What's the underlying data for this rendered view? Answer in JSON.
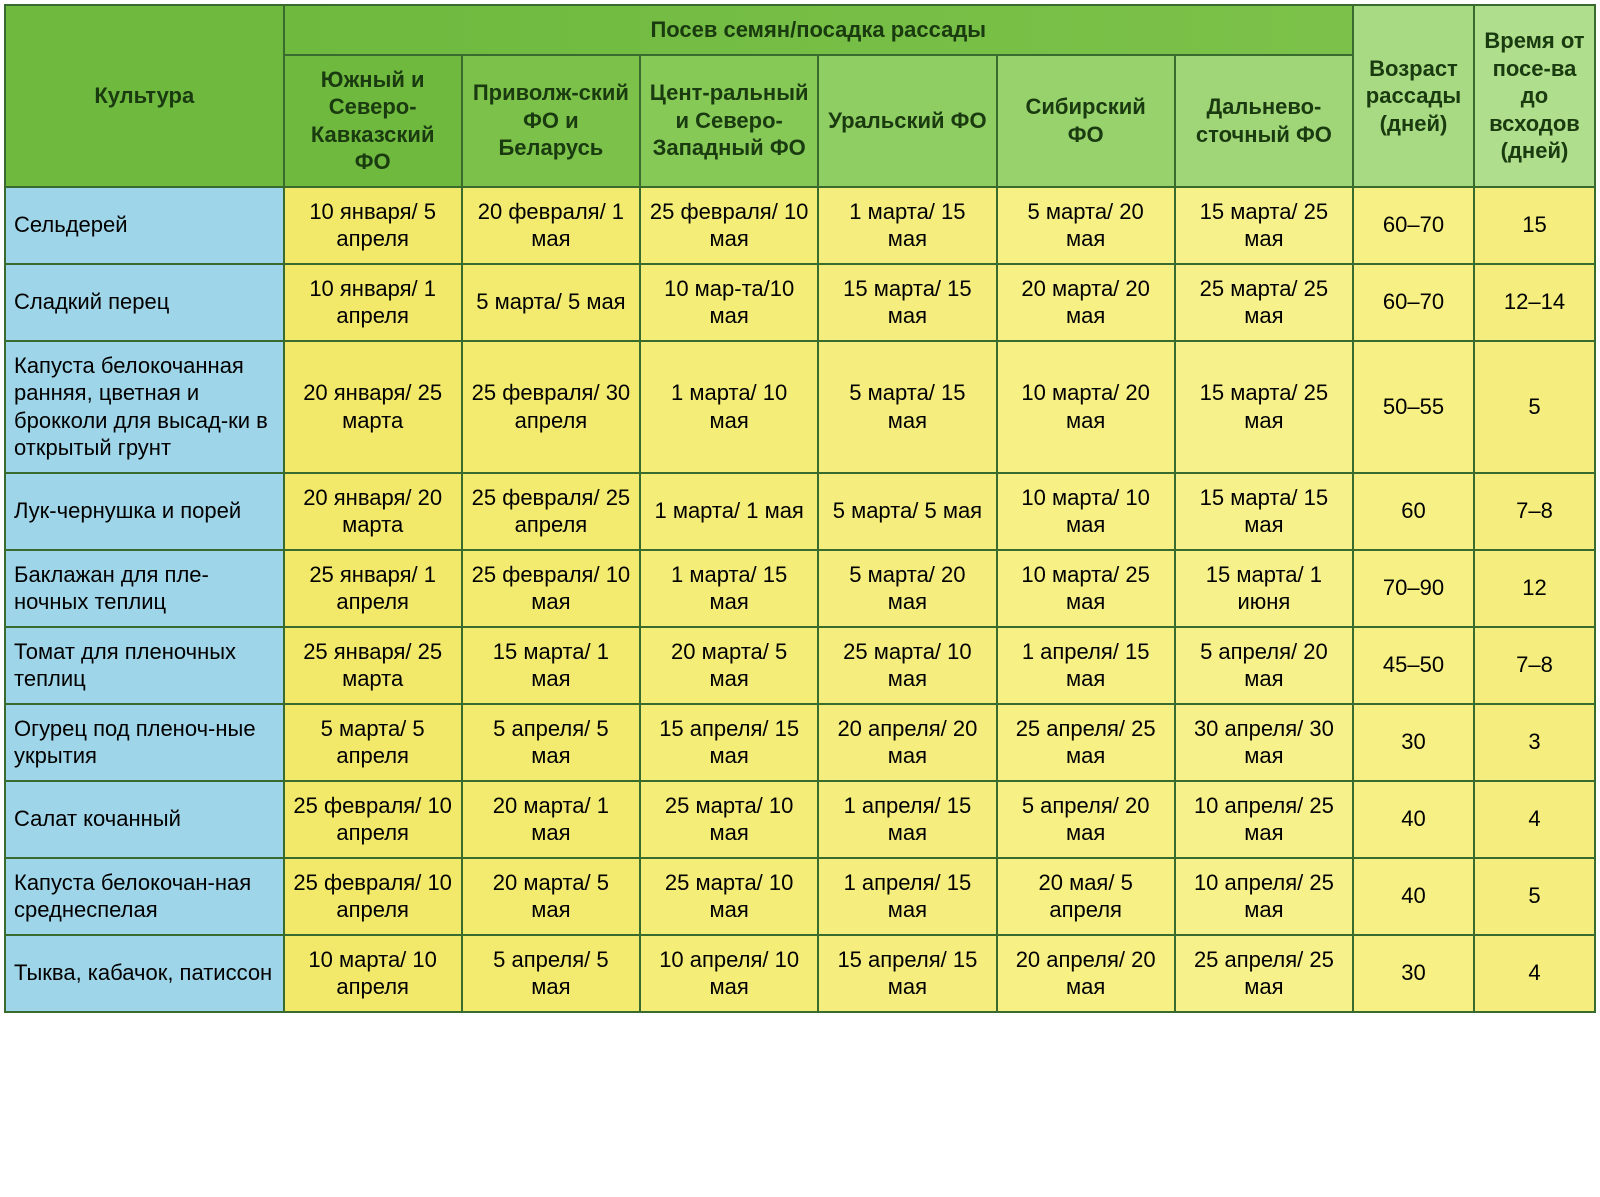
{
  "type": "table",
  "header_bg_colors": [
    "#6fb93f",
    "#7cc24a",
    "#86c957",
    "#8fce62",
    "#98d26d",
    "#a0d678",
    "#a7da82",
    "#afde8c"
  ],
  "culture_bg_color": "#9fd5e8",
  "row_bg_colors": [
    "#f2e96a",
    "#f3eb70",
    "#f4ed77",
    "#f5ee7e",
    "#f6f085",
    "#f7f18c",
    "#f6f085",
    "#f5ee7e"
  ],
  "border_color": "#3a6b2e",
  "font_family": "Arial",
  "header_fontsize": 22,
  "cell_fontsize": 22,
  "columns": {
    "culture": "Культура",
    "group": "Посев семян/посадка рассады",
    "regions": [
      "Южный и Северо-Кавказский ФО",
      "Приволж-ский ФО и Беларусь",
      "Цент-ральный и Северо-Западный ФО",
      "Уральский ФО",
      "Сибирский ФО",
      "Дальнево-сточный ФО"
    ],
    "age": "Возраст рассады (дней)",
    "sprout": "Время от посе-ва до всходов (дней)"
  },
  "rows": [
    {
      "culture": "Сельдерей",
      "cells": [
        "10 января/ 5 апреля",
        "20 февраля/ 1 мая",
        "25 февраля/ 10 мая",
        "1 марта/ 15 мая",
        "5 марта/ 20 мая",
        "15 марта/ 25 мая"
      ],
      "age": "60–70",
      "sprout": "15"
    },
    {
      "culture": "Сладкий перец",
      "cells": [
        "10 января/ 1 апреля",
        "5 марта/ 5 мая",
        "10 мар-та/10 мая",
        "15 марта/ 15 мая",
        "20 марта/ 20 мая",
        "25 марта/ 25 мая"
      ],
      "age": "60–70",
      "sprout": "12–14"
    },
    {
      "culture": "Капуста белокочанная ранняя, цветная и брокколи для высад-ки в открытый грунт",
      "cells": [
        "20 января/ 25 марта",
        "25 февраля/ 30 апреля",
        "1 марта/ 10 мая",
        "5 марта/ 15 мая",
        "10 марта/ 20 мая",
        "15 марта/ 25 мая"
      ],
      "age": "50–55",
      "sprout": "5"
    },
    {
      "culture": "Лук-чернушка и порей",
      "cells": [
        "20 января/ 20 марта",
        "25 февраля/ 25 апреля",
        "1 марта/ 1 мая",
        "5 марта/ 5 мая",
        "10 марта/ 10 мая",
        "15 марта/ 15 мая"
      ],
      "age": "60",
      "sprout": "7–8"
    },
    {
      "culture": "Баклажан для пле-ночных теплиц",
      "cells": [
        "25 января/ 1 апреля",
        "25 февраля/ 10 мая",
        "1 марта/ 15 мая",
        "5 марта/ 20 мая",
        "10 марта/ 25 мая",
        "15 марта/ 1 июня"
      ],
      "age": "70–90",
      "sprout": "12"
    },
    {
      "culture": "Томат для пленочных теплиц",
      "cells": [
        "25 января/ 25 марта",
        "15 марта/ 1 мая",
        "20 марта/ 5 мая",
        "25 марта/ 10 мая",
        "1 апреля/ 15 мая",
        "5 апреля/ 20 мая"
      ],
      "age": "45–50",
      "sprout": "7–8"
    },
    {
      "culture": "Огурец под пленоч-ные укрытия",
      "cells": [
        "5 марта/ 5 апреля",
        "5 апреля/ 5 мая",
        "15 апреля/ 15 мая",
        "20 апреля/ 20 мая",
        "25 апреля/ 25 мая",
        "30 апреля/ 30 мая"
      ],
      "age": "30",
      "sprout": "3"
    },
    {
      "culture": "Салат кочанный",
      "cells": [
        "25 февраля/ 10 апреля",
        "20 марта/ 1 мая",
        "25 марта/ 10 мая",
        "1 апреля/ 15 мая",
        "5 апреля/ 20 мая",
        "10 апреля/ 25 мая"
      ],
      "age": "40",
      "sprout": "4"
    },
    {
      "culture": "Капуста белокочан-ная среднеспелая",
      "cells": [
        "25 февраля/ 10 апреля",
        "20 марта/ 5 мая",
        "25 марта/ 10 мая",
        "1 апреля/ 15 мая",
        "20 мая/ 5 апреля",
        "10 апреля/ 25 мая"
      ],
      "age": "40",
      "sprout": "5"
    },
    {
      "culture": "Тыква, кабачок, патиссон",
      "cells": [
        "10 марта/ 10 апреля",
        "5 апреля/ 5 мая",
        "10 апреля/ 10 мая",
        "15 апреля/ 15 мая",
        "20 апреля/ 20 мая",
        "25 апреля/ 25 мая"
      ],
      "age": "30",
      "sprout": "4"
    }
  ]
}
